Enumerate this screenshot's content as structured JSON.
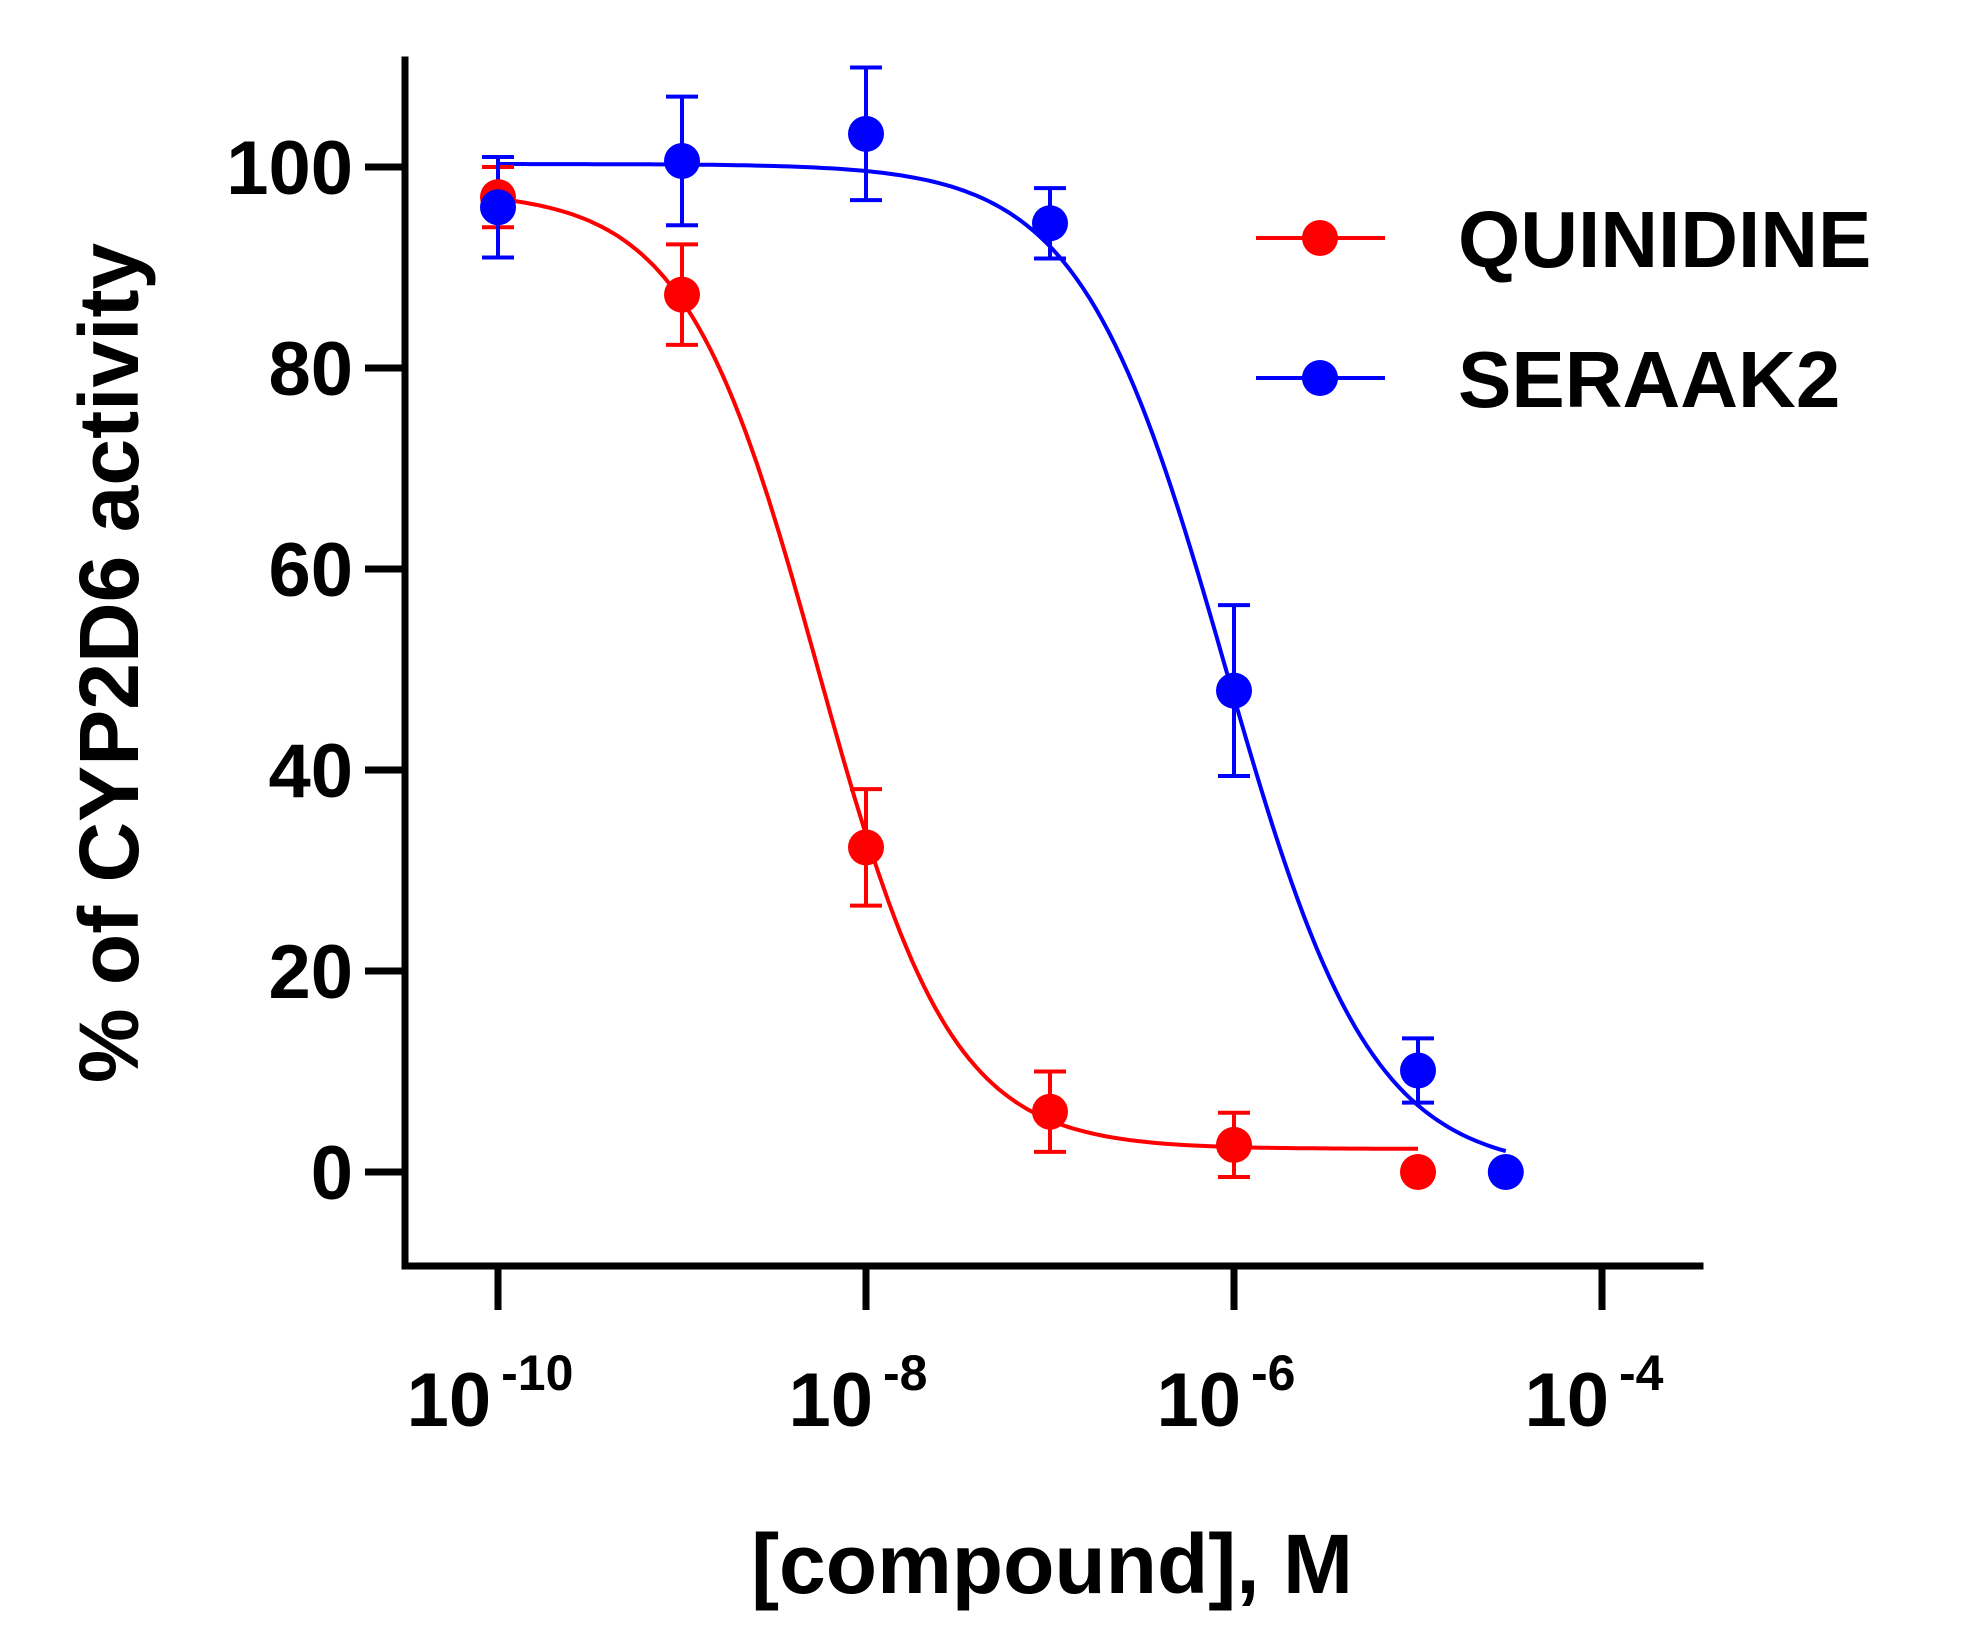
{
  "chart_data": {
    "type": "scatter",
    "xlabel": "[compound], M",
    "ylabel": "% of CYP2D6 activity",
    "xscale": "log",
    "xlim": [
      2e-11,
      0.0002
    ],
    "ylim": [
      -10,
      110
    ],
    "yticks": [
      {
        "value": 0,
        "label": "0"
      },
      {
        "value": 20,
        "label": "20"
      },
      {
        "value": 40,
        "label": "40"
      },
      {
        "value": 60,
        "label": "60"
      },
      {
        "value": 80,
        "label": "80"
      },
      {
        "value": 100,
        "label": "100"
      }
    ],
    "xticks": [
      {
        "value": 1e-10,
        "base": "10",
        "exp": "-10"
      },
      {
        "value": 1e-08,
        "base": "10",
        "exp": "-8"
      },
      {
        "value": 1e-06,
        "base": "10",
        "exp": "-6"
      },
      {
        "value": 0.0001,
        "base": "10",
        "exp": "-4"
      }
    ],
    "legend": "top-right",
    "series": [
      {
        "name": "QUINIDINE",
        "color": "#ff0000",
        "points": [
          {
            "x": 1e-10,
            "y": 97,
            "err": 3
          },
          {
            "x": 1e-09,
            "y": 87.3,
            "err": 5
          },
          {
            "x": 1e-08,
            "y": 32.3,
            "err": 5.8
          },
          {
            "x": 1e-07,
            "y": 6,
            "err": 4
          },
          {
            "x": 1e-06,
            "y": 2.7,
            "err": 3.2
          },
          {
            "x": 1e-05,
            "y": 0,
            "err": 0
          }
        ],
        "fit": {
          "bottom": 2.3,
          "top": 97.6,
          "ic50": 5.5e-09,
          "hill": 1.2,
          "xmin": 1e-10,
          "xmax": 1e-05
        }
      },
      {
        "name": "SERAAK2",
        "color": "#0000ff",
        "points": [
          {
            "x": 1e-10,
            "y": 96,
            "err": 5
          },
          {
            "x": 1e-09,
            "y": 100.6,
            "err": 6.4
          },
          {
            "x": 1e-08,
            "y": 103.3,
            "err": 6.6
          },
          {
            "x": 1e-07,
            "y": 94.4,
            "err": 3.5
          },
          {
            "x": 1e-06,
            "y": 47.9,
            "err": 8.5
          },
          {
            "x": 1e-05,
            "y": 10.1,
            "err": 3.2
          },
          {
            "x": 3e-05,
            "y": 0,
            "err": 0
          }
        ],
        "fit": {
          "bottom": 0,
          "top": 100.3,
          "ic50": 9e-07,
          "hill": 1.1,
          "xmin": 1e-10,
          "xmax": 3e-05
        }
      }
    ]
  }
}
